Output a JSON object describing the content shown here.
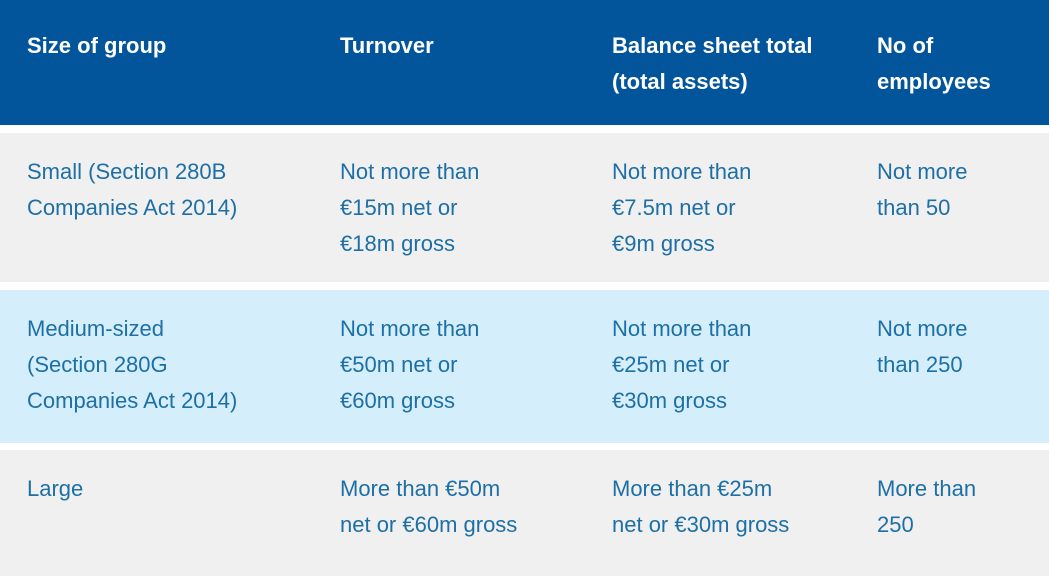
{
  "theme": {
    "header_bg": "#02549b",
    "header_text": "#ffffff",
    "body_text": "#1d6fa5",
    "row_gray": "#f0f0f0",
    "row_blue": "#d4effb",
    "gap": "#ffffff"
  },
  "table": {
    "columns": [
      "Size of group",
      "Turnover",
      "Balance sheet total\n(total assets)",
      "No of\nemployees"
    ],
    "rows": [
      {
        "cells": [
          "Small (Section 280B\nCompanies Act 2014)",
          "Not more than\n€15m net or\n€18m gross",
          "Not more than\n€7.5m net or\n€9m gross",
          "Not more\nthan 50"
        ]
      },
      {
        "cells": [
          "Medium-sized\n(Section 280G\nCompanies Act 2014)",
          "Not more than\n€50m net or\n€60m gross",
          "Not more than\n€25m net or\n€30m gross",
          "Not more\nthan 250"
        ]
      },
      {
        "cells": [
          "Large",
          "More than €50m\nnet or €60m gross",
          "More than €25m\nnet or €30m gross",
          "More than\n250"
        ]
      }
    ]
  },
  "chart_data": {
    "type": "table",
    "columns": [
      "Size of group",
      "Turnover",
      "Balance sheet total (total assets)",
      "No of employees"
    ],
    "rows": [
      [
        "Small (Section 280B Companies Act 2014)",
        "Not more than €15m net or €18m gross",
        "Not more than €7.5m net or €9m gross",
        "Not more than 50"
      ],
      [
        "Medium-sized (Section 280G Companies Act 2014)",
        "Not more than €50m net or €60m gross",
        "Not more than €25m net or €30m gross",
        "Not more than 250"
      ],
      [
        "Large",
        "More than €50m net or €60m gross",
        "More than €25m net or €30m gross",
        "More than 250"
      ]
    ],
    "title": "",
    "legend": "none",
    "grid": "row-bands"
  }
}
